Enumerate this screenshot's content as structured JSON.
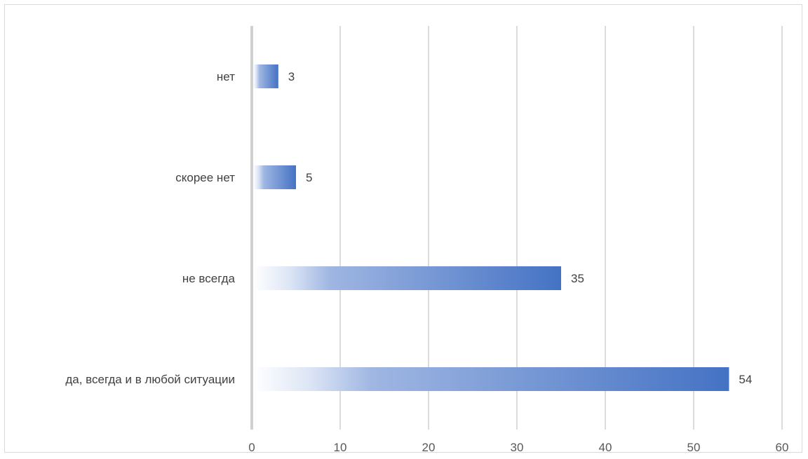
{
  "chart_data": {
    "type": "bar",
    "orientation": "horizontal",
    "categories": [
      "да, всегда и в любой ситуации",
      "не всегда",
      "скорее нет",
      "нет"
    ],
    "values": [
      54,
      35,
      5,
      3
    ],
    "xlim": [
      0,
      60
    ],
    "xticks": [
      "0",
      "10",
      "20",
      "30",
      "40",
      "50",
      "60"
    ],
    "tick_values": [
      0,
      10,
      20,
      30,
      40,
      50,
      60
    ],
    "data_labels": [
      "54",
      "35",
      "5",
      "3"
    ],
    "grid": "vertical",
    "legend": "none",
    "title": "",
    "xlabel": "",
    "ylabel": ""
  },
  "colors": {
    "bar_start": "#ffffff",
    "bar_end": "#4472c4",
    "grid": "#c8c8c8",
    "axis": "#d0d0d0",
    "text": "#404040"
  }
}
